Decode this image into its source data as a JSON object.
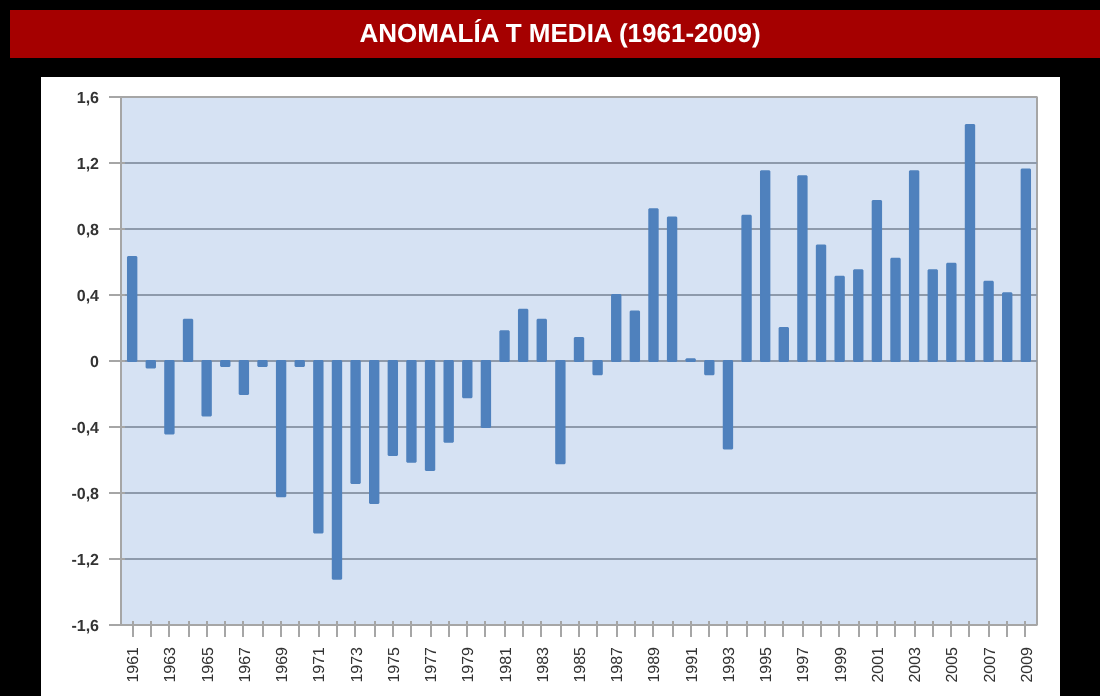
{
  "chart_data": {
    "type": "bar",
    "title": "ANOMALÍA T MEDIA (1961-2009)",
    "categories": [
      "1961",
      null,
      "1963",
      null,
      "1965",
      null,
      "1967",
      null,
      "1969",
      null,
      "1971",
      null,
      "1973",
      null,
      "1975",
      null,
      "1977",
      null,
      "1979",
      null,
      "1981",
      null,
      "1983",
      null,
      "1985",
      null,
      "1987",
      null,
      "1989",
      null,
      "1991",
      null,
      "1993",
      null,
      "1995",
      null,
      "1997",
      null,
      "1999",
      null,
      "2001",
      null,
      "2003",
      null,
      "2005",
      null,
      "2007",
      null,
      "2009"
    ],
    "values": [
      0.63,
      -0.04,
      -0.44,
      0.25,
      -0.33,
      -0.03,
      -0.2,
      -0.03,
      -0.82,
      -0.03,
      -1.04,
      -1.32,
      -0.74,
      -0.86,
      -0.57,
      -0.61,
      -0.66,
      -0.49,
      -0.22,
      -0.4,
      0.18,
      0.31,
      0.25,
      -0.62,
      0.14,
      -0.08,
      0.4,
      0.3,
      0.92,
      0.87,
      0.01,
      -0.08,
      -0.53,
      0.88,
      1.15,
      0.2,
      1.12,
      0.7,
      0.51,
      0.55,
      0.97,
      0.62,
      1.15,
      0.55,
      0.59,
      1.43,
      0.48,
      0.41,
      1.16
    ],
    "color": "#4f81bd",
    "ylim": [
      -1.6,
      1.6
    ],
    "yticks": [
      {
        "value": -1.6,
        "label": "-1,6"
      },
      {
        "value": -1.2,
        "label": "-1,2"
      },
      {
        "value": -0.8,
        "label": "-0,8"
      },
      {
        "value": -0.4,
        "label": "-0,4"
      },
      0,
      {
        "value": 0.4,
        "label": "0,4"
      },
      {
        "value": 0.8,
        "label": "0,8"
      },
      {
        "value": 1.2,
        "label": "1,2"
      },
      {
        "value": 1.6,
        "label": "1,6"
      }
    ],
    "grid": "y"
  }
}
